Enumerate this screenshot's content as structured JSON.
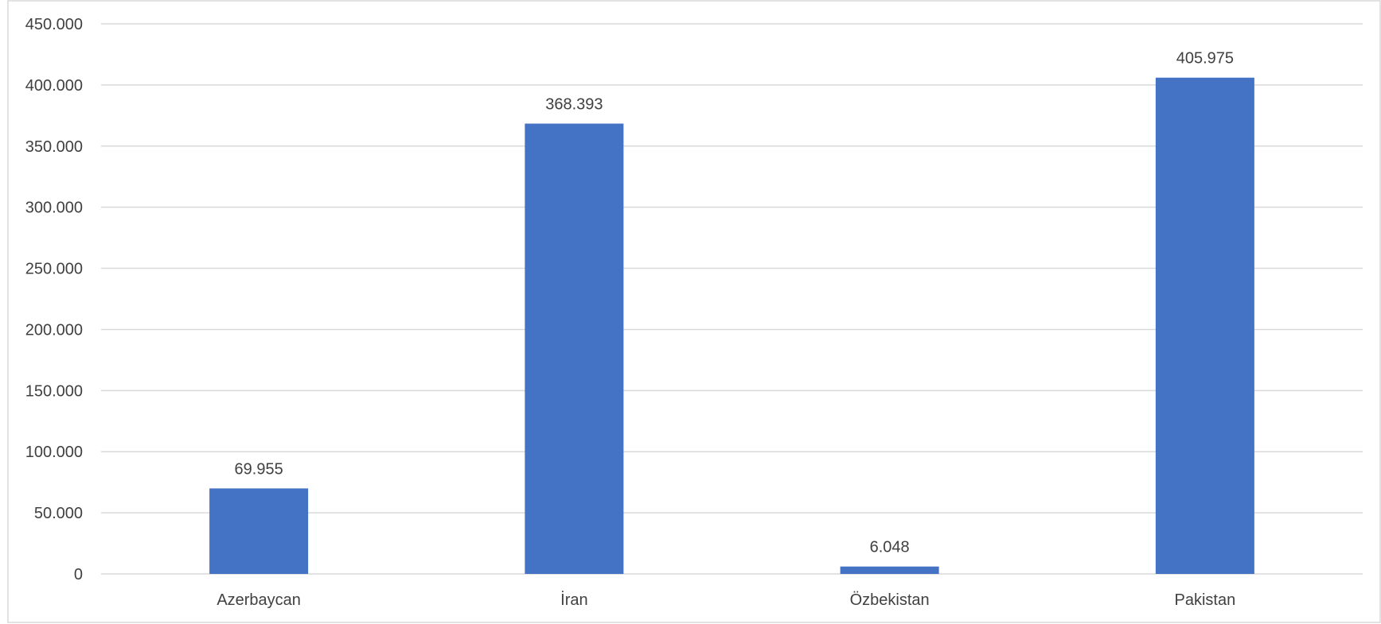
{
  "chart_data": {
    "type": "bar",
    "categories": [
      "Azerbaycan",
      "İran",
      "Özbekistan",
      "Pakistan"
    ],
    "values": [
      69955,
      368393,
      6048,
      405975
    ],
    "data_labels": [
      "69.955",
      "368.393",
      "6.048",
      "405.975"
    ],
    "ylim": [
      0,
      450000
    ],
    "yticks": [
      0,
      50000,
      100000,
      150000,
      200000,
      250000,
      300000,
      350000,
      400000,
      450000
    ],
    "ytick_labels": [
      "0",
      "50.000",
      "100.000",
      "150.000",
      "200.000",
      "250.000",
      "300.000",
      "350.000",
      "400.000",
      "450.000"
    ],
    "grid": true,
    "legend": "none",
    "colors": {
      "bar": "#4472C4",
      "grid": "#D9D9D9",
      "text": "#404040",
      "border": "#D9D9D9"
    }
  }
}
